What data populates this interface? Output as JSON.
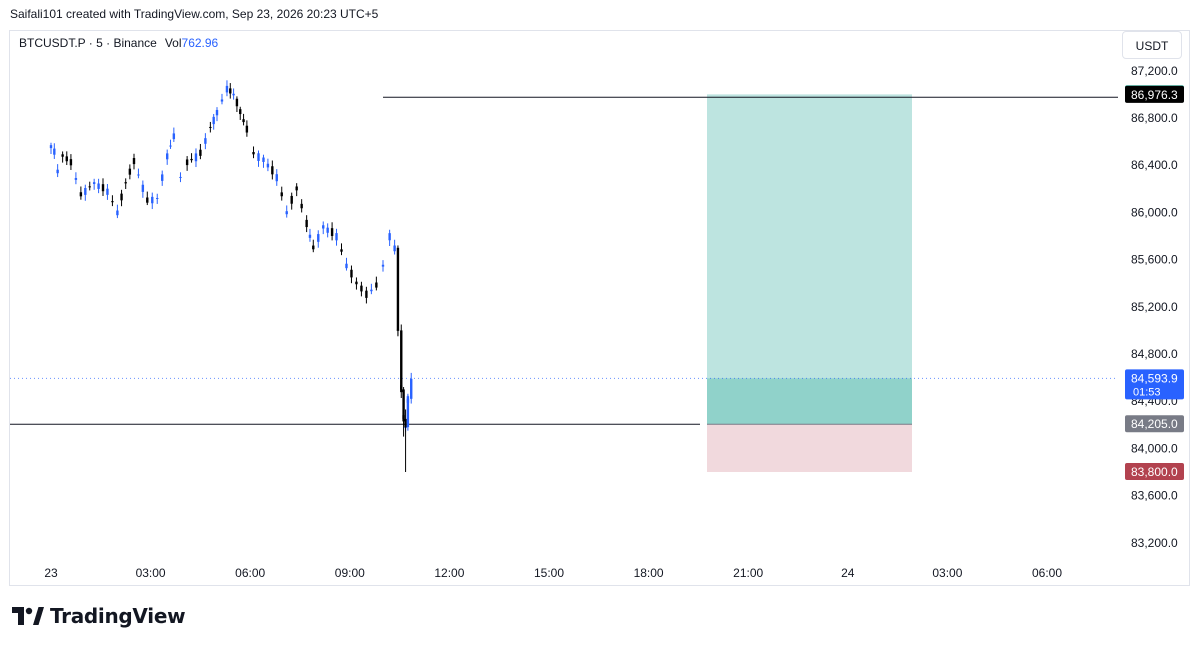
{
  "header": {
    "created_text": "Saifali101 created with TradingView.com, Sep 23, 2026 20:23 UTC+5"
  },
  "symbol": {
    "name": "BTCUSDT.P · 5 · Binance",
    "vol_label": "Vol",
    "vol_value": "762.96"
  },
  "currency_button": "USDT",
  "brand": {
    "name": "TradingView"
  },
  "colors": {
    "candle_up": "#2962ff",
    "candle_down": "#000000",
    "target_fill": "#b2dfdb",
    "stop_fill": "#f0d5d9",
    "price_badge": "#2962ff",
    "target_badge": "#089981",
    "stop_badge": "#b2424f",
    "entry_badge": "#787b86"
  },
  "chart_data": {
    "type": "candlestick",
    "timeframe": "5",
    "ylim": [
      83000,
      87300
    ],
    "y_ticks": [
      "87,200.0",
      "86,800.0",
      "86,400.0",
      "86,000.0",
      "85,600.0",
      "85,200.0",
      "84,800.0",
      "84,400.0",
      "84,000.0",
      "83,600.0",
      "83,200.0"
    ],
    "x_ticks": [
      "23",
      "03:00",
      "06:00",
      "09:00",
      "12:00",
      "15:00",
      "18:00",
      "21:00",
      "24",
      "03:00",
      "06:00"
    ],
    "horizontal_lines": [
      {
        "price": 86976.3,
        "label": "86,976.3",
        "from_time": "09:30"
      },
      {
        "price": 84205.0,
        "from_time": "start",
        "to_time": "19:30"
      }
    ],
    "long_position": {
      "entry": 84205.0,
      "entry_label": "84,205.0",
      "target": 87000.0,
      "target_label": "87,000.0",
      "stop": 83800.0,
      "stop_label": "83,800.0",
      "start_time": "19:35",
      "end_time": "01:50"
    },
    "current_price": {
      "value": 84593.9,
      "label": "84,593.9",
      "countdown": "01:53"
    },
    "candles_ohlc_approx": [
      [
        0.0,
        86530,
        86610,
        86480,
        86560
      ],
      [
        0.1,
        86560,
        86640,
        86500,
        86520
      ],
      [
        0.2,
        86520,
        86580,
        86300,
        86350
      ],
      [
        0.35,
        86350,
        86500,
        86200,
        86480
      ],
      [
        0.6,
        86480,
        86560,
        86380,
        86420
      ],
      [
        0.9,
        86420,
        86480,
        86080,
        86150
      ],
      [
        1.3,
        86150,
        86300,
        86080,
        86250
      ],
      [
        1.7,
        86250,
        86300,
        86130,
        86180
      ],
      [
        2.0,
        86180,
        86250,
        85950,
        86000
      ],
      [
        2.25,
        86000,
        86300,
        85970,
        86250
      ],
      [
        2.5,
        86250,
        86500,
        86200,
        86430
      ],
      [
        2.9,
        86430,
        86450,
        86050,
        86100
      ],
      [
        3.2,
        86100,
        86150,
        86080,
        86120
      ],
      [
        3.5,
        86120,
        86500,
        86100,
        86480
      ],
      [
        3.7,
        86480,
        86700,
        86440,
        86650
      ],
      [
        3.9,
        86650,
        86700,
        86250,
        86300
      ],
      [
        4.1,
        86300,
        86450,
        86260,
        86420
      ],
      [
        4.5,
        86420,
        86550,
        86400,
        86500
      ],
      [
        4.8,
        86500,
        86760,
        86480,
        86720
      ],
      [
        5.0,
        86720,
        86900,
        86650,
        86850
      ],
      [
        5.3,
        86850,
        87200,
        86820,
        87050
      ],
      [
        5.5,
        87050,
        87180,
        86950,
        87000
      ],
      [
        5.7,
        87000,
        87050,
        86800,
        86850
      ],
      [
        5.9,
        86850,
        86880,
        86650,
        86700
      ],
      [
        6.1,
        86700,
        86720,
        86450,
        86500
      ],
      [
        6.4,
        86500,
        86600,
        86350,
        86450
      ],
      [
        6.8,
        86450,
        86480,
        86250,
        86300
      ],
      [
        7.1,
        86300,
        86420,
        85950,
        86000
      ],
      [
        7.4,
        86000,
        86250,
        85980,
        86200
      ],
      [
        7.7,
        86200,
        86250,
        85880,
        85900
      ],
      [
        7.9,
        85900,
        86000,
        85650,
        85700
      ],
      [
        8.2,
        85700,
        85950,
        85680,
        85880
      ],
      [
        8.6,
        85880,
        85900,
        85750,
        85800
      ],
      [
        8.9,
        85800,
        85860,
        85500,
        85550
      ],
      [
        9.2,
        85550,
        85620,
        85350,
        85400
      ],
      [
        9.5,
        85400,
        85450,
        85250,
        85300
      ],
      [
        9.8,
        85300,
        85420,
        85250,
        85380
      ],
      [
        10.0,
        85380,
        85600,
        85370,
        85550
      ],
      [
        10.2,
        85550,
        85850,
        85520,
        85800
      ],
      [
        10.35,
        85800,
        85930,
        85650,
        85700
      ],
      [
        10.45,
        85700,
        85720,
        84950,
        85000
      ],
      [
        10.55,
        85000,
        85050,
        84480,
        84500
      ],
      [
        10.62,
        84500,
        84520,
        84100,
        84250
      ],
      [
        10.68,
        84250,
        84330,
        83800,
        84180
      ],
      [
        10.75,
        84180,
        84450,
        84150,
        84420
      ],
      [
        10.85,
        84420,
        84640,
        84380,
        84590
      ]
    ]
  }
}
